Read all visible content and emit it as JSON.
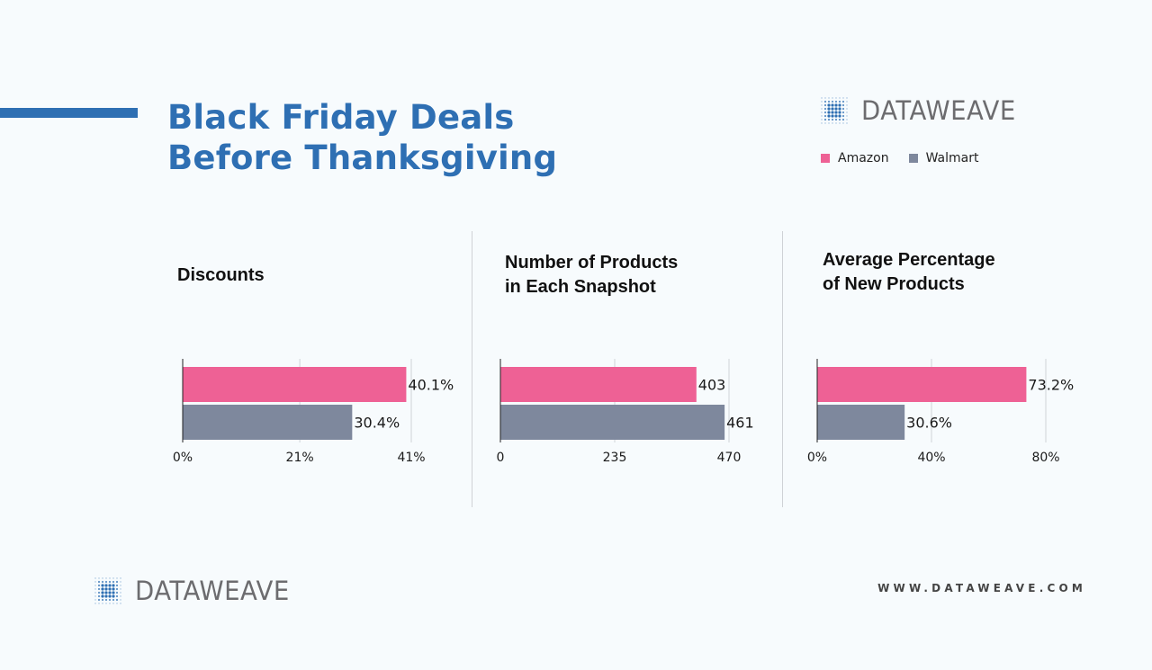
{
  "header": {
    "title_line1": "Black Friday Deals",
    "title_line2": "Before Thanksgiving"
  },
  "brand": {
    "name": "DATAWEAVE",
    "website": "WWW.DATAWEAVE.COM"
  },
  "colors": {
    "accent": "#2e6fb3",
    "amazon": "#ee6195",
    "walmart": "#7e889d",
    "logo_dots": "#2e6fb3"
  },
  "legend": [
    {
      "label": "Amazon",
      "color": "#ee6195"
    },
    {
      "label": "Walmart",
      "color": "#7e889d"
    }
  ],
  "chart_data": [
    {
      "type": "bar",
      "orientation": "horizontal",
      "title_lines": [
        "Discounts"
      ],
      "categories": [
        "Amazon",
        "Walmart"
      ],
      "values": [
        40.1,
        30.4
      ],
      "value_labels": [
        "40.1%",
        "30.4%"
      ],
      "xlim": [
        0,
        41
      ],
      "ticks": [
        0,
        21,
        41
      ],
      "tick_labels": [
        "0%",
        "21%",
        "41%"
      ]
    },
    {
      "type": "bar",
      "orientation": "horizontal",
      "title_lines": [
        "Number of Products",
        "in Each Snapshot"
      ],
      "categories": [
        "Amazon",
        "Walmart"
      ],
      "values": [
        403,
        461
      ],
      "value_labels": [
        "403",
        "461"
      ],
      "xlim": [
        0,
        470
      ],
      "ticks": [
        0,
        235,
        470
      ],
      "tick_labels": [
        "0",
        "235",
        "470"
      ]
    },
    {
      "type": "bar",
      "orientation": "horizontal",
      "title_lines": [
        "Average Percentage",
        "of New Products"
      ],
      "categories": [
        "Amazon",
        "Walmart"
      ],
      "values": [
        73.2,
        30.6
      ],
      "value_labels": [
        "73.2%",
        "30.6%"
      ],
      "xlim": [
        0,
        80
      ],
      "ticks": [
        0,
        40,
        80
      ],
      "tick_labels": [
        "0%",
        "40%",
        "80%"
      ]
    }
  ]
}
